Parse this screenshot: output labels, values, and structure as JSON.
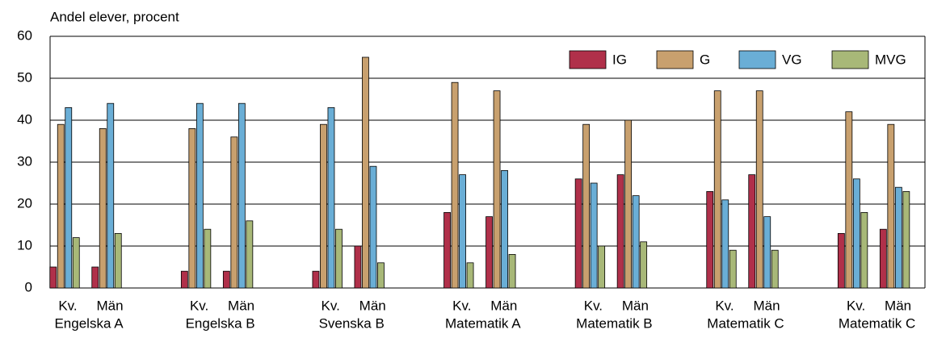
{
  "chart_data": {
    "type": "bar",
    "y_label": "Andel elever, procent",
    "categories": [
      "Kv.",
      "Män",
      "Kv.",
      "Män",
      "Kv.",
      "Män",
      "Kv.",
      "Män",
      "Kv.",
      "Män",
      "Kv.",
      "Män",
      "Kv.",
      "Män"
    ],
    "groups": [
      "Engelska A",
      "Engelska B",
      "Svenska B",
      "Matematik A",
      "Matematik B",
      "Matematik C",
      "Matematik C"
    ],
    "series": [
      {
        "name": "IG",
        "color": "#b0304a",
        "values": [
          5,
          5,
          4,
          4,
          4,
          10,
          18,
          17,
          26,
          27,
          23,
          27,
          13,
          14
        ]
      },
      {
        "name": "G",
        "color": "#c8a06e",
        "values": [
          39,
          38,
          38,
          36,
          39,
          55,
          49,
          47,
          39,
          40,
          47,
          47,
          42,
          39
        ]
      },
      {
        "name": "VG",
        "color": "#6aaed6",
        "values": [
          43,
          44,
          44,
          44,
          43,
          29,
          27,
          28,
          25,
          22,
          21,
          17,
          26,
          24
        ]
      },
      {
        "name": "MVG",
        "color": "#a8b878",
        "values": [
          12,
          13,
          14,
          16,
          14,
          6,
          6,
          8,
          10,
          11,
          9,
          9,
          18,
          23
        ]
      }
    ],
    "ylim": [
      0,
      60
    ],
    "yticks": [
      0,
      10,
      20,
      30,
      40,
      50,
      60
    ],
    "grid": true,
    "legend": "top-right"
  }
}
